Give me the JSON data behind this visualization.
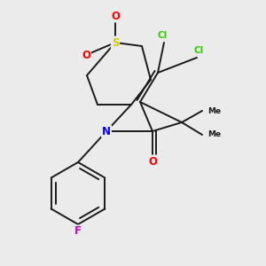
{
  "bg_color": "#ebebeb",
  "bond_color": "#1a1a1a",
  "atom_colors": {
    "S": "#cccc00",
    "O": "#ff0000",
    "N": "#0000ff",
    "F": "#cc00cc",
    "Cl": "#33cc00",
    "C": "#1a1a1a"
  },
  "lw": 1.4,
  "fs": 7.5
}
